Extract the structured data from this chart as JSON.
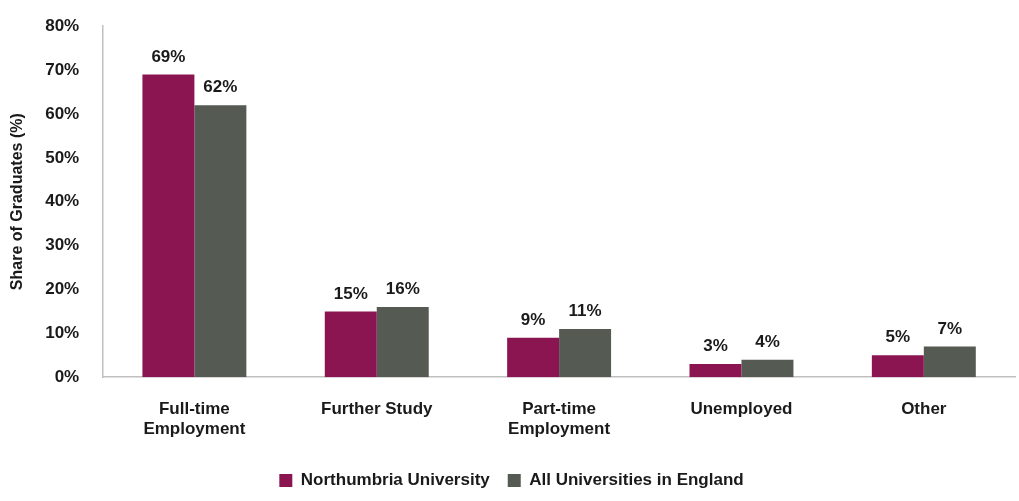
{
  "chart_data": {
    "type": "bar",
    "categories": [
      "Full-time\nEmployment",
      "Further Study",
      "Part-time\nEmployment",
      "Unemployed",
      "Other"
    ],
    "series": [
      {
        "name": "Northumbria University",
        "color": "#8a1550",
        "values": [
          69,
          15,
          9,
          3,
          5
        ],
        "value_labels": [
          "69%",
          "15%",
          "9%",
          "3%",
          "5%"
        ]
      },
      {
        "name": "All Universities in England",
        "color": "#555a52",
        "values": [
          62,
          16,
          11,
          4,
          7
        ],
        "value_labels": [
          "62%",
          "16%",
          "11%",
          "4%",
          "7%"
        ]
      }
    ],
    "ylabel": "Share of Graduates (%)",
    "ylim": [
      0,
      80
    ],
    "yticks": [
      {
        "value": 0,
        "label": "0%"
      },
      {
        "value": 10,
        "label": "10%"
      },
      {
        "value": 20,
        "label": "20%"
      },
      {
        "value": 30,
        "label": "30%"
      },
      {
        "value": 40,
        "label": "40%"
      },
      {
        "value": 50,
        "label": "50%"
      },
      {
        "value": 60,
        "label": "60%"
      },
      {
        "value": 70,
        "label": "70%"
      },
      {
        "value": 80,
        "label": "80%"
      }
    ],
    "legend": "bottom"
  }
}
